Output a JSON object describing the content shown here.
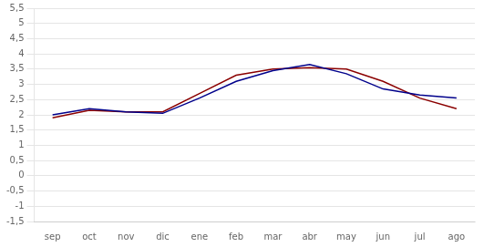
{
  "chart_data": {
    "type": "line",
    "categories": [
      "sep",
      "oct",
      "nov",
      "dic",
      "ene",
      "feb",
      "mar",
      "abr",
      "may",
      "jun",
      "jul",
      "ago"
    ],
    "series": [
      {
        "color": "#8B0000",
        "values": [
          1.9,
          2.15,
          2.1,
          2.1,
          2.7,
          3.3,
          3.5,
          3.55,
          3.5,
          3.1,
          2.55,
          2.2
        ]
      },
      {
        "color": "#00008B",
        "values": [
          2.0,
          2.2,
          2.1,
          2.05,
          2.55,
          3.1,
          3.45,
          3.65,
          3.35,
          2.85,
          2.65,
          2.55
        ]
      }
    ],
    "ylim": [
      -1.5,
      5.5
    ],
    "yticks": [
      {
        "value": -1.5,
        "label": "-1,5"
      },
      -1,
      {
        "value": -0.5,
        "label": "-0,5"
      },
      0,
      {
        "value": 0.5,
        "label": "0,5"
      },
      1,
      {
        "value": 1.5,
        "label": "1,5"
      },
      2,
      {
        "value": 2.5,
        "label": "2,5"
      },
      3,
      {
        "value": 3.5,
        "label": "3,5"
      },
      4,
      {
        "value": 4.5,
        "label": "4,5"
      },
      5,
      {
        "value": 5.5,
        "label": "5,5"
      }
    ],
    "grid": true
  }
}
